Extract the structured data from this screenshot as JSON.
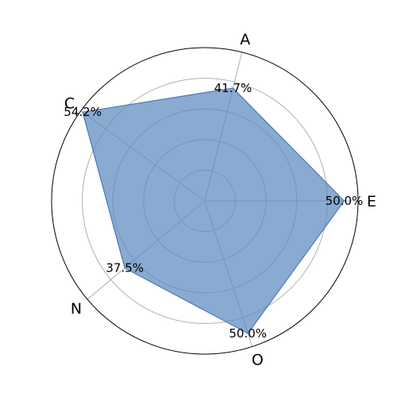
{
  "chart_data": {
    "type": "radar",
    "title": "",
    "categories": [
      "E",
      "A",
      "C",
      "N",
      "O"
    ],
    "category_angles_deg": [
      0,
      76,
      144,
      220,
      288
    ],
    "values": [
      50.0,
      41.7,
      54.2,
      37.5,
      50.0
    ],
    "value_labels": [
      "50.0%",
      "41.7%",
      "54.2%",
      "37.5%",
      "50.0%"
    ],
    "r_max": 55,
    "grid": true,
    "r_ticks_labeled": false,
    "colors": {
      "fill": "#5b8abf",
      "fill_opacity": 0.72,
      "stroke": "#4a79b0",
      "grid": "#b0b0b0",
      "frame": "#000000"
    }
  }
}
